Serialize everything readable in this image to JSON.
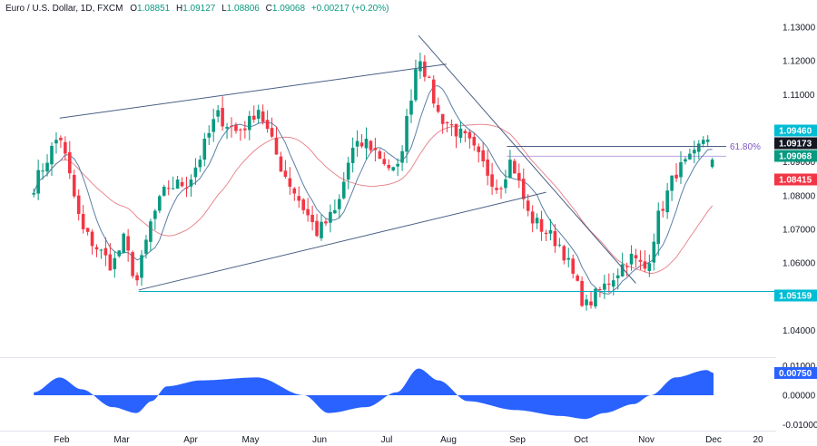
{
  "header": {
    "symbol": "Euro / U.S. Dollar, 1D, FXCM",
    "open_label": "O",
    "open": "1.08851",
    "high_label": "H",
    "high": "1.09127",
    "low_label": "L",
    "low": "1.08806",
    "close_label": "C",
    "close": "1.09068",
    "change": "+0.00217 (+0.20%)"
  },
  "chart_data": [
    {
      "type": "candlestick",
      "title": "Euro / U.S. Dollar, 1D, FXCM",
      "x_tick_labels": [
        "Feb",
        "Mar",
        "Apr",
        "May",
        "Jun",
        "Jul",
        "Aug",
        "Sep",
        "Oct",
        "Nov",
        "Dec",
        "20"
      ],
      "y_tick_labels": [
        "1.13000",
        "1.12000",
        "1.11000",
        "1.10000",
        "1.09000",
        "1.08000",
        "1.07000",
        "1.06000",
        "1.05000",
        "1.04000"
      ],
      "ylim": [
        1.0345,
        1.1332
      ],
      "grid": false,
      "colors": {
        "up": "#089981",
        "down": "#f23645",
        "ma_fast": "#5b7fa8",
        "ma_slow": "#e8888f",
        "trendline": "#4a5f85",
        "support": "#00acc1",
        "fib": "#7e57c2"
      },
      "price_tags": [
        {
          "value": "1.09460",
          "color": "#00bcd4"
        },
        {
          "value": "1.09173",
          "color": "#131722"
        },
        {
          "value": "1.09068",
          "color": "#089981"
        },
        {
          "value": "1.08415",
          "color": "#f23645"
        },
        {
          "value": "1.05159",
          "color": "#00bcd4"
        }
      ],
      "annotations": [
        {
          "text": "61.80%",
          "level": 1.0946
        }
      ],
      "support_level": 1.05159,
      "resistance_level": 1.0946,
      "trendlines": [
        {
          "name": "channel-upper",
          "from": [
            "Jan 31",
            1.103
          ],
          "to": [
            "Jul 31",
            1.119
          ]
        },
        {
          "name": "channel-lower",
          "from": [
            "Mar 8",
            1.052
          ],
          "to": [
            "Sep 15",
            1.081
          ]
        },
        {
          "name": "downtrend",
          "from": [
            "Jul 17",
            1.1275
          ],
          "to": [
            "Oct 27",
            1.054
          ]
        }
      ],
      "series": [
        {
          "type": "candles",
          "anchors": [
            [
              "Jan 18",
              1.083
            ],
            [
              "Jan 31",
              1.0985
            ],
            [
              "Feb 10",
              1.07
            ],
            [
              "Feb 24",
              1.059
            ],
            [
              "Mar 1",
              1.067
            ],
            [
              "Mar 7",
              1.054
            ],
            [
              "Mar 14",
              1.073
            ],
            [
              "Mar 21",
              1.0825
            ],
            [
              "Mar 31",
              1.084
            ],
            [
              "Apr 6",
              1.092
            ],
            [
              "Apr 14",
              1.104
            ],
            [
              "Apr 24",
              1.099
            ],
            [
              "May 1",
              1.102
            ],
            [
              "May 4",
              1.107
            ],
            [
              "May 15",
              1.088
            ],
            [
              "May 31",
              1.069
            ],
            [
              "Jun 9",
              1.076
            ],
            [
              "Jun 15",
              1.093
            ],
            [
              "Jun 22",
              1.096
            ],
            [
              "Jul 6",
              1.086
            ],
            [
              "Jul 11",
              1.102
            ],
            [
              "Jul 17",
              1.123
            ],
            [
              "Jul 27",
              1.104
            ],
            [
              "Aug 10",
              1.096
            ],
            [
              "Aug 24",
              1.082
            ],
            [
              "Aug 30",
              1.091
            ],
            [
              "Sep 7",
              1.074
            ],
            [
              "Sep 22",
              1.065
            ],
            [
              "Oct 3",
              1.047
            ],
            [
              "Oct 12",
              1.053
            ],
            [
              "Oct 19",
              1.058
            ],
            [
              "Oct 24",
              1.062
            ],
            [
              "Nov 1",
              1.058
            ],
            [
              "Nov 6",
              1.073
            ],
            [
              "Nov 14",
              1.087
            ],
            [
              "Nov 22",
              1.091
            ],
            [
              "Nov 28",
              1.099
            ],
            [
              "Dec 1",
              1.0907
            ]
          ]
        },
        {
          "type": "moving-average-fast",
          "color": "#5b7fa8"
        },
        {
          "type": "moving-average-slow",
          "color": "#e8888f"
        }
      ]
    },
    {
      "type": "area",
      "y_tick_labels": [
        "0.01000",
        "0.00000",
        "-0.01000"
      ],
      "ylim": [
        -0.011,
        0.011
      ],
      "color": "#2962ff",
      "last_value": "0.00750",
      "anchors": [
        [
          "Jan 18",
          0.001
        ],
        [
          "Jan 31",
          0.006
        ],
        [
          "Feb 10",
          0.002
        ],
        [
          "Feb 24",
          -0.004
        ],
        [
          "Mar 7",
          -0.006
        ],
        [
          "Mar 14",
          -0.002
        ],
        [
          "Mar 21",
          0.003
        ],
        [
          "Apr 6",
          0.005
        ],
        [
          "May 4",
          0.006
        ],
        [
          "May 25",
          0.0
        ],
        [
          "Jun 5",
          -0.006
        ],
        [
          "Jun 22",
          -0.004
        ],
        [
          "Jul 6",
          0.001
        ],
        [
          "Jul 17",
          0.009
        ],
        [
          "Jul 27",
          0.005
        ],
        [
          "Aug 10",
          -0.002
        ],
        [
          "Sep 1",
          -0.005
        ],
        [
          "Sep 22",
          -0.007
        ],
        [
          "Oct 3",
          -0.008
        ],
        [
          "Oct 12",
          -0.006
        ],
        [
          "Oct 26",
          -0.003
        ],
        [
          "Nov 3",
          0.0
        ],
        [
          "Nov 14",
          0.006
        ],
        [
          "Nov 28",
          0.0085
        ],
        [
          "Dec 1",
          0.0075
        ]
      ]
    }
  ]
}
